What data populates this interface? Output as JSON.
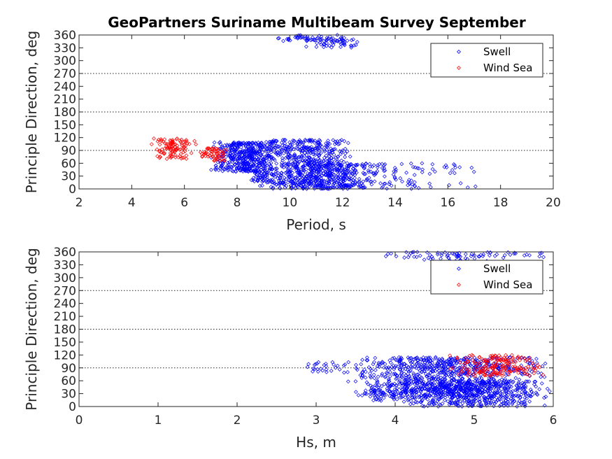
{
  "title": "GeoPartners Suriname Multibeam Survey September",
  "chart_data": [
    {
      "type": "scatter",
      "xlabel": "Period, s",
      "ylabel": "Principle Direction, deg",
      "xlim": [
        2,
        20
      ],
      "ylim": [
        0,
        360
      ],
      "xticks": [
        2,
        4,
        6,
        8,
        10,
        12,
        14,
        16,
        18,
        20
      ],
      "yticks": [
        0,
        30,
        60,
        90,
        120,
        150,
        180,
        210,
        240,
        270,
        300,
        330,
        360
      ],
      "grid_y": [
        90,
        180,
        270
      ],
      "legend_position": "top-right",
      "series": [
        {
          "name": "Swell",
          "color": "#0000ff",
          "marker": "diamond",
          "clusters": [
            {
              "x": [
                7.0,
                9.6
              ],
              "y": [
                40,
                110
              ]
            },
            {
              "x": [
                8.5,
                12.5
              ],
              "y": [
                0,
                115
              ]
            },
            {
              "x": [
                10.0,
                14.0
              ],
              "y": [
                0,
                60
              ]
            },
            {
              "x": [
                12.0,
                17.5
              ],
              "y": [
                0,
                60
              ]
            },
            {
              "x": [
                8.5,
                9.5
              ],
              "y": [
                15,
                40
              ]
            },
            {
              "x": [
                9.5,
                12.5
              ],
              "y": [
                345,
                360
              ]
            },
            {
              "x": [
                10.5,
                13.0
              ],
              "y": [
                330,
                350
              ]
            }
          ]
        },
        {
          "name": "Wind Sea",
          "color": "#ff0000",
          "marker": "diamond",
          "clusters": [
            {
              "x": [
                4.7,
                6.5
              ],
              "y": [
                70,
                118
              ]
            },
            {
              "x": [
                6.5,
                7.8
              ],
              "y": [
                65,
                95
              ]
            }
          ]
        }
      ]
    },
    {
      "type": "scatter",
      "xlabel": "Hs, m",
      "ylabel": "Principle Direction, deg",
      "xlim": [
        0,
        6
      ],
      "ylim": [
        0,
        360
      ],
      "xticks": [
        0,
        1,
        2,
        3,
        4,
        5,
        6
      ],
      "yticks": [
        0,
        30,
        60,
        90,
        120,
        150,
        180,
        210,
        240,
        270,
        300,
        330,
        360
      ],
      "grid_y": [
        90,
        180,
        270
      ],
      "legend_position": "top-right",
      "series": [
        {
          "name": "Swell",
          "color": "#0000ff",
          "marker": "diamond",
          "clusters": [
            {
              "x": [
                2.8,
                3.4
              ],
              "y": [
                80,
                105
              ]
            },
            {
              "x": [
                3.3,
                6.0
              ],
              "y": [
                20,
                115
              ]
            },
            {
              "x": [
                4.0,
                6.0
              ],
              "y": [
                0,
                60
              ]
            },
            {
              "x": [
                3.5,
                4.2
              ],
              "y": [
                10,
                40
              ]
            },
            {
              "x": [
                3.7,
                6.0
              ],
              "y": [
                345,
                360
              ]
            },
            {
              "x": [
                4.3,
                5.5
              ],
              "y": [
                330,
                345
              ]
            }
          ]
        },
        {
          "name": "Wind Sea",
          "color": "#ff0000",
          "marker": "diamond",
          "clusters": [
            {
              "x": [
                4.6,
                6.0
              ],
              "y": [
                70,
                120
              ]
            }
          ]
        }
      ]
    }
  ]
}
